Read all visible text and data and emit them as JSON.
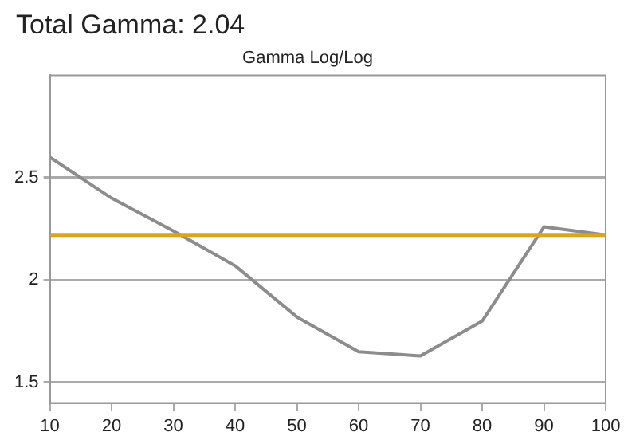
{
  "chart_data": {
    "type": "line",
    "title": "Total Gamma: 2.04",
    "subtitle": "Gamma Log/Log",
    "x": [
      10,
      20,
      30,
      40,
      50,
      60,
      70,
      80,
      90,
      100
    ],
    "series": [
      {
        "color": "#8c8c8c",
        "values": [
          2.6,
          2.4,
          2.24,
          2.07,
          1.82,
          1.65,
          1.63,
          1.8,
          2.26,
          2.22
        ]
      }
    ],
    "xlim": [
      10,
      100
    ],
    "xticks": [
      10,
      20,
      30,
      40,
      50,
      60,
      70,
      80,
      90,
      100
    ],
    "ylim": [
      1.4,
      3.0
    ],
    "yticks": [
      1.5,
      2,
      2.5
    ],
    "ref_lines": [
      {
        "axis": "y",
        "value": 2.22,
        "color": "#e0a020"
      }
    ],
    "grid": "y",
    "legend": false,
    "marker": "none",
    "line_style": "solid"
  }
}
